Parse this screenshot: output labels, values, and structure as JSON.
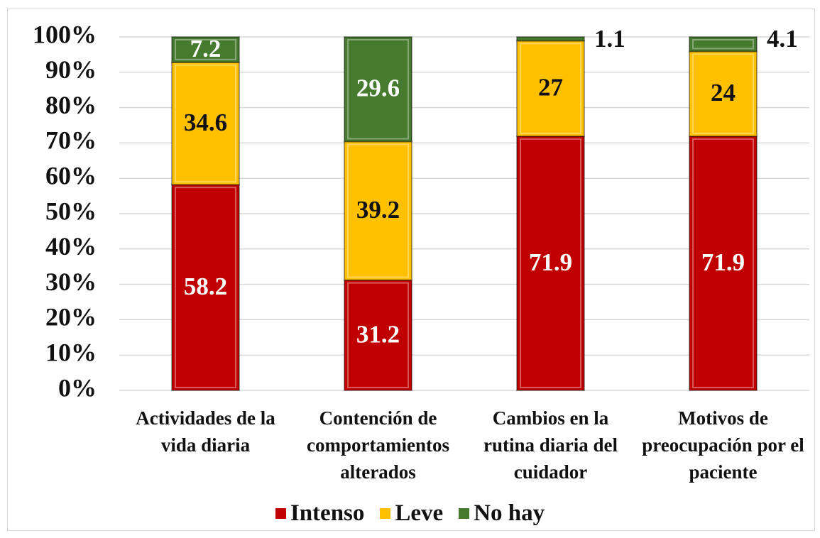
{
  "chart_data": {
    "type": "stacked_bar",
    "categories": [
      "Actividades de la vida diaria",
      "Contención de comportamientos alterados",
      "Cambios en la rutina diaria del cuidador",
      "Motivos de preocupación por el paciente"
    ],
    "series": [
      {
        "name": "Intenso",
        "color": "#c00000",
        "values": [
          58.2,
          31.2,
          71.9,
          71.9
        ]
      },
      {
        "name": "Leve",
        "color": "#ffc000",
        "values": [
          34.6,
          39.2,
          27,
          24
        ]
      },
      {
        "name": "No hay",
        "color": "#467a2e",
        "values": [
          7.2,
          29.6,
          1.1,
          4.1
        ]
      }
    ],
    "ylim": [
      0,
      100
    ],
    "yticks": [
      {
        "value": 0,
        "label": "0%"
      },
      {
        "value": 10,
        "label": "10%"
      },
      {
        "value": 20,
        "label": "20%"
      },
      {
        "value": 30,
        "label": "30%"
      },
      {
        "value": 40,
        "label": "40%"
      },
      {
        "value": 50,
        "label": "50%"
      },
      {
        "value": 60,
        "label": "60%"
      },
      {
        "value": 70,
        "label": "70%"
      },
      {
        "value": 80,
        "label": "80%"
      },
      {
        "value": 90,
        "label": "90%"
      },
      {
        "value": 100,
        "label": "100%"
      }
    ],
    "grid": true,
    "legend": "bottom"
  }
}
